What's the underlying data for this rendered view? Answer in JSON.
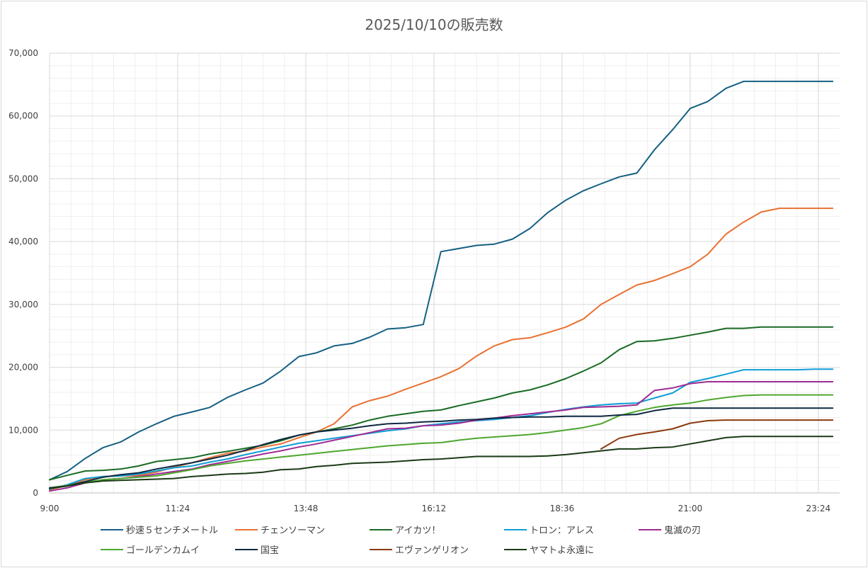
{
  "chart_data": {
    "type": "line",
    "title": "2025/10/10の販売数",
    "xlabel": "",
    "ylabel": "",
    "ylim": [
      0,
      70000
    ],
    "y_ticks": [
      "0",
      "10,000",
      "20,000",
      "30,000",
      "40,000",
      "50,000",
      "60,000",
      "70,000"
    ],
    "y_tick_values": [
      0,
      10000,
      20000,
      30000,
      40000,
      50000,
      60000,
      70000
    ],
    "x_ticks": [
      "9:00",
      "11:24",
      "13:48",
      "16:12",
      "18:36",
      "21:00",
      "23:24"
    ],
    "x_tick_hours": [
      9,
      11.4,
      13.8,
      16.2,
      18.6,
      21,
      23.4
    ],
    "xlim_hours": [
      9,
      23.8
    ],
    "grid": true,
    "legend_position": "bottom",
    "x_hours": [
      9.0,
      9.33,
      9.67,
      10.0,
      10.33,
      10.67,
      11.0,
      11.33,
      11.67,
      12.0,
      12.33,
      12.67,
      13.0,
      13.33,
      13.67,
      14.0,
      14.33,
      14.67,
      15.0,
      15.33,
      15.67,
      16.0,
      16.33,
      16.67,
      17.0,
      17.33,
      17.67,
      18.0,
      18.33,
      18.67,
      19.0,
      19.33,
      19.67,
      20.0,
      20.33,
      20.67,
      21.0,
      21.33,
      21.67,
      22.0,
      22.33,
      22.67,
      23.0,
      23.33,
      23.67
    ],
    "series": [
      {
        "name": "秒速５センチメートル",
        "color": "#156082",
        "values": [
          2100,
          3400,
          5500,
          7200,
          8100,
          9700,
          11000,
          12200,
          12900,
          13600,
          15200,
          16400,
          17500,
          19400,
          21700,
          22300,
          23400,
          23800,
          24800,
          26100,
          26300,
          26800,
          38400,
          38900,
          39400,
          39600,
          40400,
          42100,
          44600,
          46600,
          48100,
          49200,
          50300,
          50900,
          54600,
          57800,
          61200,
          62300,
          64400,
          65500,
          65500,
          65500,
          65500,
          65500,
          65500
        ]
      },
      {
        "name": "チェンソーマン",
        "color": "#E97132",
        "values": [
          500,
          1200,
          2100,
          2600,
          2700,
          2800,
          3300,
          4100,
          4800,
          5600,
          6300,
          6700,
          7300,
          7800,
          8800,
          9700,
          11000,
          13700,
          14700,
          15400,
          16500,
          17500,
          18500,
          19800,
          21800,
          23400,
          24400,
          24700,
          25500,
          26400,
          27700,
          30000,
          31600,
          33100,
          33800,
          34900,
          36000,
          38000,
          41200,
          43100,
          44700,
          45300,
          45300,
          45300,
          45300
        ]
      },
      {
        "name": "アイカツ！",
        "color": "#196B24",
        "values": [
          2100,
          2800,
          3500,
          3600,
          3800,
          4300,
          5000,
          5300,
          5600,
          6200,
          6600,
          7100,
          7600,
          8300,
          9200,
          9700,
          10200,
          10800,
          11600,
          12200,
          12600,
          13000,
          13200,
          13900,
          14500,
          15100,
          15900,
          16400,
          17200,
          18200,
          19400,
          20700,
          22800,
          24100,
          24200,
          24600,
          25100,
          25600,
          26200,
          26200,
          26400,
          26400,
          26400,
          26400,
          26400
        ]
      },
      {
        "name": "トロン：アレス",
        "color": "#0F9ED5",
        "values": [
          600,
          1300,
          2300,
          2600,
          2700,
          3000,
          3500,
          4000,
          4300,
          4900,
          5400,
          6100,
          6700,
          7300,
          7900,
          8300,
          8700,
          9100,
          9500,
          9900,
          10200,
          10700,
          11000,
          11300,
          11500,
          11700,
          12000,
          12300,
          12800,
          13300,
          13700,
          14000,
          14200,
          14300,
          15100,
          15900,
          17600,
          18200,
          18900,
          19600,
          19600,
          19600,
          19600,
          19700,
          19700
        ]
      },
      {
        "name": "鬼滅の刃",
        "color": "#A02B93",
        "values": [
          300,
          800,
          1600,
          2100,
          2300,
          2600,
          3000,
          3400,
          3800,
          4500,
          5000,
          5600,
          6200,
          6700,
          7300,
          7800,
          8400,
          9000,
          9600,
          10200,
          10300,
          10700,
          10800,
          11100,
          11600,
          11900,
          12300,
          12600,
          12900,
          13200,
          13600,
          13700,
          13800,
          14000,
          16300,
          16700,
          17400,
          17700,
          17700,
          17700,
          17700,
          17700,
          17700,
          17700,
          17700
        ]
      },
      {
        "name": "ゴールデンカムイ",
        "color": "#4EA72E",
        "values": [
          800,
          1200,
          1700,
          2100,
          2300,
          2500,
          2700,
          3200,
          3700,
          4300,
          4700,
          5100,
          5400,
          5700,
          6000,
          6300,
          6600,
          6900,
          7200,
          7500,
          7700,
          7900,
          8000,
          8400,
          8700,
          8900,
          9100,
          9300,
          9600,
          10000,
          10400,
          11000,
          12300,
          13000,
          13600,
          14000,
          14300,
          14800,
          15200,
          15500,
          15600,
          15600,
          15600,
          15600,
          15600
        ]
      },
      {
        "name": "国宝",
        "color": "#0E2841",
        "values": [
          800,
          1100,
          1800,
          2500,
          2900,
          3200,
          3800,
          4300,
          4800,
          5400,
          6000,
          6800,
          7700,
          8500,
          9200,
          9700,
          10000,
          10300,
          10700,
          11000,
          11100,
          11300,
          11400,
          11600,
          11700,
          11900,
          12000,
          12100,
          12100,
          12200,
          12200,
          12200,
          12400,
          12500,
          13100,
          13500,
          13500,
          13500,
          13500,
          13500,
          13500,
          13500,
          13500,
          13500,
          13500
        ]
      },
      {
        "name": "エヴァンゲリオン",
        "color": "#8B3A0E",
        "start_index": 31,
        "values": [
          7000,
          8700,
          9300,
          9700,
          10200,
          11100,
          11500,
          11600,
          11600,
          11600,
          11600,
          11600,
          11600,
          11600
        ]
      },
      {
        "name": "ヤマトよ永遠に",
        "color": "#1B3B16",
        "values": [
          700,
          1100,
          1600,
          1900,
          2000,
          2100,
          2200,
          2300,
          2600,
          2800,
          3000,
          3100,
          3300,
          3700,
          3800,
          4200,
          4400,
          4700,
          4800,
          4900,
          5100,
          5300,
          5400,
          5600,
          5800,
          5800,
          5800,
          5800,
          5900,
          6100,
          6400,
          6700,
          7000,
          7000,
          7200,
          7300,
          7800,
          8300,
          8800,
          9000,
          9000,
          9000,
          9000,
          9000,
          9000
        ]
      }
    ]
  }
}
